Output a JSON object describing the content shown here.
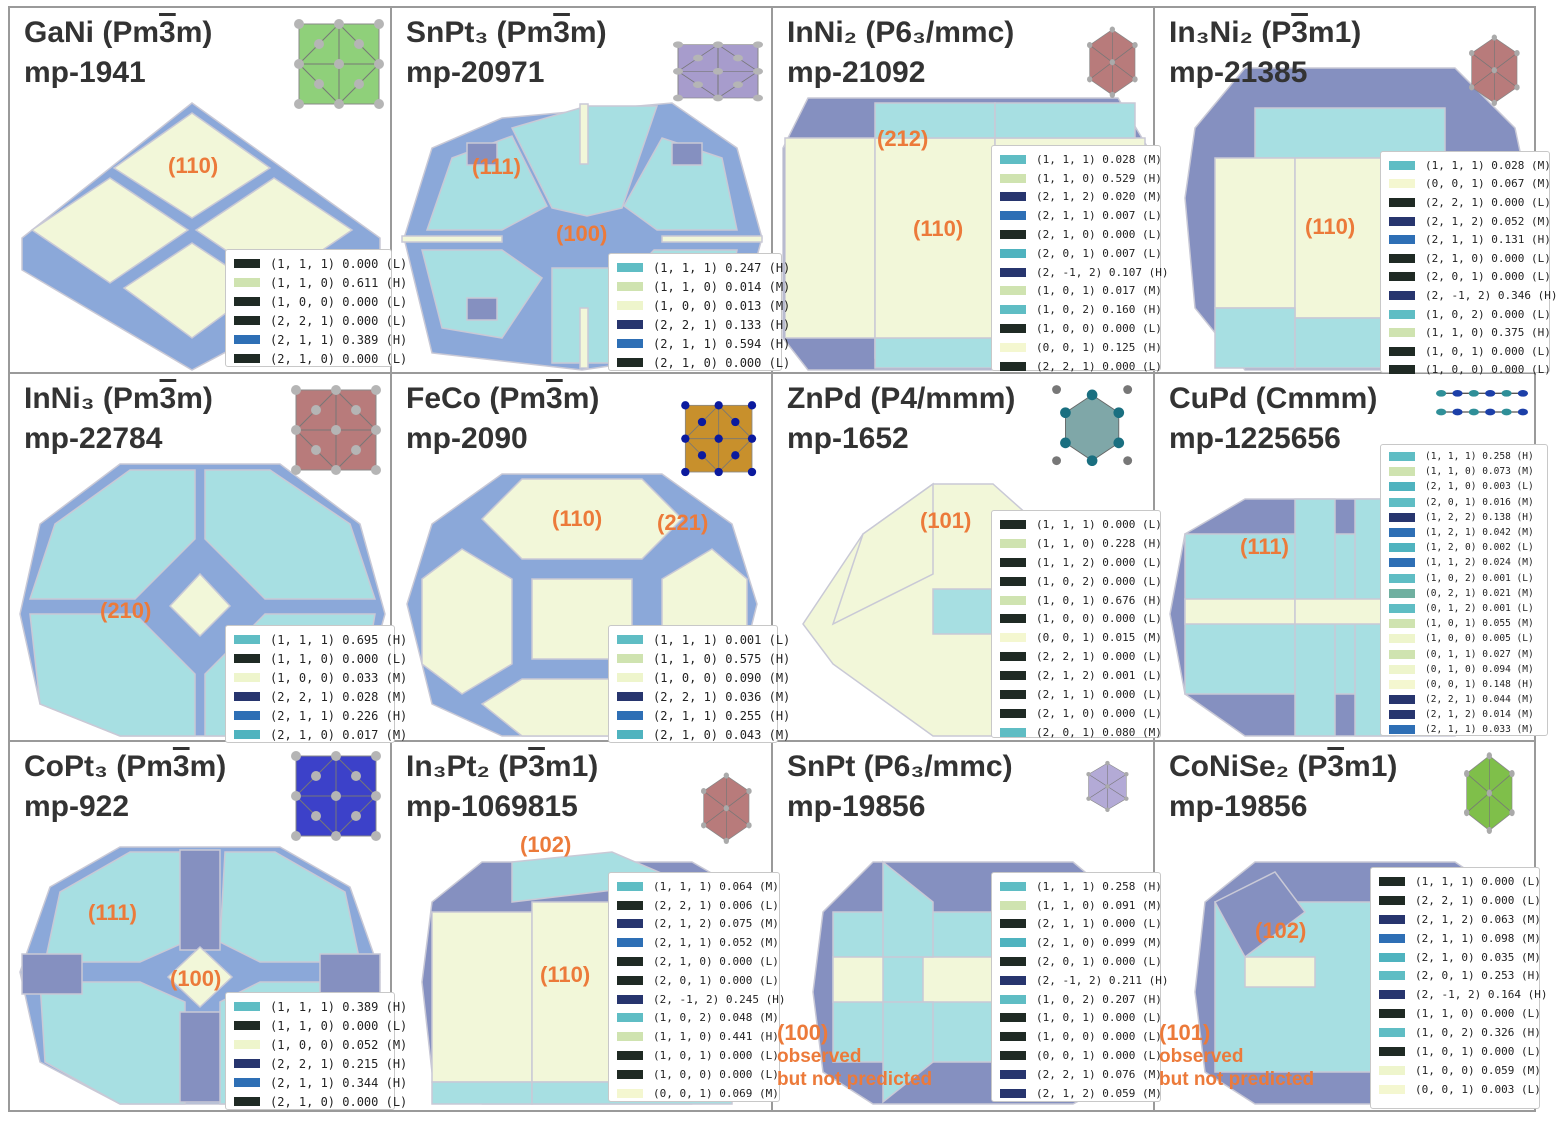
{
  "colors": {
    "H": "#2e6fb5",
    "M": "#5fbdc4",
    "L": "#1f2a24",
    "yellow": "#f2f7d9",
    "cyan": "#a7dfe2",
    "blue": "#8ba8d9",
    "slate": "#8590c0",
    "edge": "#c9c9d6",
    "label": "#ec7a3a"
  },
  "panels": [
    {
      "id": "gani",
      "formula": "GaNi (Pm3m)",
      "formula_parts": {
        "pre": "GaNi (Pm",
        "bar": "3",
        "post": "m)"
      },
      "mpid": "mp-1941",
      "thumb": "cubic-green",
      "labels": [
        {
          "text": "(110)"
        }
      ],
      "legend": [
        {
          "text": "(1, 1, 1) 0.000 (L)",
          "color": "#1f2a24"
        },
        {
          "text": "(1, 1, 0) 0.611 (H)",
          "color": "#cfe3b0"
        },
        {
          "text": "(1, 0, 0) 0.000 (L)",
          "color": "#1f2a24"
        },
        {
          "text": "(2, 2, 1) 0.000 (L)",
          "color": "#1f2a24"
        },
        {
          "text": "(2, 1, 1) 0.389 (H)",
          "color": "#2e6fb5"
        },
        {
          "text": "(2, 1, 0) 0.000 (L)",
          "color": "#1f2a24"
        }
      ]
    },
    {
      "id": "snpt3",
      "formula_parts": {
        "pre": "SnPt₃ (Pm",
        "bar": "3",
        "post": "m)"
      },
      "mpid": "mp-20971",
      "thumb": "cubic-violet",
      "labels": [
        {
          "text": "(111)"
        },
        {
          "text": "(100)"
        }
      ],
      "legend": [
        {
          "text": "(1, 1, 1) 0.247 (H)",
          "color": "#5fbdc4"
        },
        {
          "text": "(1, 1, 0) 0.014 (M)",
          "color": "#cfe3b0"
        },
        {
          "text": "(1, 0, 0) 0.013 (M)",
          "color": "#eef5cc"
        },
        {
          "text": "(2, 2, 1) 0.133 (H)",
          "color": "#27356e"
        },
        {
          "text": "(2, 1, 1) 0.594 (H)",
          "color": "#2e6fb5"
        },
        {
          "text": "(2, 1, 0) 0.000 (L)",
          "color": "#1f2a24"
        }
      ]
    },
    {
      "id": "inni2",
      "formula_parts": {
        "pre": "InNi₂ (P6₃/mmc)",
        "bar": "",
        "post": ""
      },
      "mpid": "mp-21092",
      "thumb": "hex-red",
      "labels": [
        {
          "text": "(212)"
        },
        {
          "text": "(110)"
        }
      ],
      "legend": [
        {
          "text": "(1, 1, 1) 0.028 (M)",
          "color": "#5fbdc4"
        },
        {
          "text": "(1, 1, 0) 0.529 (H)",
          "color": "#cfe3b0"
        },
        {
          "text": "(2, 1, 2) 0.020 (M)",
          "color": "#27356e"
        },
        {
          "text": "(2, 1, 1) 0.007 (L)",
          "color": "#2e6fb5"
        },
        {
          "text": "(2, 1, 0) 0.000 (L)",
          "color": "#1f2a24"
        },
        {
          "text": "(2, 0, 1) 0.007 (L)",
          "color": "#4fb3bf"
        },
        {
          "text": "(2, -1, 2) 0.107 (H)",
          "color": "#27356e"
        },
        {
          "text": "(1, 0, 1) 0.017 (M)",
          "color": "#cfe3b0"
        },
        {
          "text": "(1, 0, 2) 0.160 (H)",
          "color": "#5fbdc4"
        },
        {
          "text": "(1, 0, 0) 0.000 (L)",
          "color": "#1f2a24"
        },
        {
          "text": "(0, 0, 1) 0.125 (H)",
          "color": "#f4f7d0"
        },
        {
          "text": "(2, 2, 1) 0.000 (L)",
          "color": "#1f2a24"
        }
      ]
    },
    {
      "id": "in3ni2",
      "formula_parts": {
        "pre": "In₃Ni₂ (P",
        "bar": "3",
        "post": "m1)"
      },
      "mpid": "mp-21385",
      "thumb": "hex-red",
      "labels": [
        {
          "text": "(110)"
        }
      ],
      "legend": [
        {
          "text": "(1, 1, 1) 0.028 (M)",
          "color": "#5fbdc4"
        },
        {
          "text": "(0, 0, 1) 0.067 (M)",
          "color": "#f4f7d0"
        },
        {
          "text": "(2, 2, 1) 0.000 (L)",
          "color": "#1f2a24"
        },
        {
          "text": "(2, 1, 2) 0.052 (M)",
          "color": "#27356e"
        },
        {
          "text": "(2, 1, 1) 0.131 (H)",
          "color": "#2e6fb5"
        },
        {
          "text": "(2, 1, 0) 0.000 (L)",
          "color": "#1f2a24"
        },
        {
          "text": "(2, 0, 1) 0.000 (L)",
          "color": "#1f2a24"
        },
        {
          "text": "(2, -1, 2) 0.346 (H)",
          "color": "#27356e"
        },
        {
          "text": "(1, 0, 2) 0.000 (L)",
          "color": "#5fbdc4"
        },
        {
          "text": "(1, 1, 0) 0.375 (H)",
          "color": "#cfe3b0"
        },
        {
          "text": "(1, 0, 1) 0.000 (L)",
          "color": "#1f2a24"
        },
        {
          "text": "(1, 0, 0) 0.000 (L)",
          "color": "#1f2a24"
        }
      ]
    },
    {
      "id": "inni3",
      "formula_parts": {
        "pre": "InNi₃ (Pm",
        "bar": "3",
        "post": "m)"
      },
      "mpid": "mp-22784",
      "thumb": "cubic-red",
      "labels": [
        {
          "text": "(210)"
        }
      ],
      "legend": [
        {
          "text": "(1, 1, 1) 0.695 (H)",
          "color": "#5fbdc4"
        },
        {
          "text": "(1, 1, 0) 0.000 (L)",
          "color": "#1f2a24"
        },
        {
          "text": "(1, 0, 0) 0.033 (M)",
          "color": "#eef5cc"
        },
        {
          "text": "(2, 2, 1) 0.028 (M)",
          "color": "#27356e"
        },
        {
          "text": "(2, 1, 1) 0.226 (H)",
          "color": "#2e6fb5"
        },
        {
          "text": "(2, 1, 0) 0.017 (M)",
          "color": "#4fb3bf"
        }
      ]
    },
    {
      "id": "feco",
      "formula_parts": {
        "pre": "FeCo (Pm",
        "bar": "3",
        "post": "m)"
      },
      "mpid": "mp-2090",
      "thumb": "cubic-gold",
      "labels": [
        {
          "text": "(110)"
        },
        {
          "text": "(221)"
        }
      ],
      "legend": [
        {
          "text": "(1, 1, 1) 0.001 (L)",
          "color": "#5fbdc4"
        },
        {
          "text": "(1, 1, 0) 0.575 (H)",
          "color": "#cfe3b0"
        },
        {
          "text": "(1, 0, 0) 0.090 (M)",
          "color": "#eef5cc"
        },
        {
          "text": "(2, 2, 1) 0.036 (M)",
          "color": "#27356e"
        },
        {
          "text": "(2, 1, 1) 0.255 (H)",
          "color": "#2e6fb5"
        },
        {
          "text": "(2, 1, 0) 0.043 (M)",
          "color": "#4fb3bf"
        }
      ]
    },
    {
      "id": "znpd",
      "formula_parts": {
        "pre": "ZnPd (P4/mmm)",
        "bar": "",
        "post": ""
      },
      "mpid": "mp-1652",
      "thumb": "tetra-teal",
      "labels": [
        {
          "text": "(101)"
        }
      ],
      "legend": [
        {
          "text": "(1, 1, 1) 0.000 (L)",
          "color": "#1f2a24"
        },
        {
          "text": "(1, 1, 0) 0.228 (H)",
          "color": "#cfe3b0"
        },
        {
          "text": "(1, 1, 2) 0.000 (L)",
          "color": "#1f2a24"
        },
        {
          "text": "(1, 0, 2) 0.000 (L)",
          "color": "#1f2a24"
        },
        {
          "text": "(1, 0, 1) 0.676 (H)",
          "color": "#cfe3b0"
        },
        {
          "text": "(1, 0, 0) 0.000 (L)",
          "color": "#1f2a24"
        },
        {
          "text": "(0, 0, 1) 0.015 (M)",
          "color": "#f4f7d0"
        },
        {
          "text": "(2, 2, 1) 0.000 (L)",
          "color": "#1f2a24"
        },
        {
          "text": "(2, 1, 2) 0.001 (L)",
          "color": "#1f2a24"
        },
        {
          "text": "(2, 1, 1) 0.000 (L)",
          "color": "#1f2a24"
        },
        {
          "text": "(2, 1, 0) 0.000 (L)",
          "color": "#1f2a24"
        },
        {
          "text": "(2, 0, 1) 0.080 (M)",
          "color": "#5fbdc4"
        }
      ]
    },
    {
      "id": "cupd",
      "formula_parts": {
        "pre": "CuPd (Cmmm)",
        "bar": "",
        "post": ""
      },
      "mpid": "mp-1225656",
      "thumb": "chain-teal",
      "labels": [
        {
          "text": "(111)"
        }
      ],
      "legend": [
        {
          "text": "(1, 1, 1) 0.258 (H)",
          "color": "#5fbdc4"
        },
        {
          "text": "(1, 1, 0) 0.073 (M)",
          "color": "#cfe3b0"
        },
        {
          "text": "(2, 1, 0) 0.003 (L)",
          "color": "#4fb3bf"
        },
        {
          "text": "(2, 0, 1) 0.016 (M)",
          "color": "#5fbdc4"
        },
        {
          "text": "(1, 2, 2) 0.138 (H)",
          "color": "#27356e"
        },
        {
          "text": "(1, 2, 1) 0.042 (M)",
          "color": "#2e6fb5"
        },
        {
          "text": "(1, 2, 0) 0.002 (L)",
          "color": "#4fb3bf"
        },
        {
          "text": "(1, 1, 2) 0.024 (M)",
          "color": "#2e6fb5"
        },
        {
          "text": "(1, 0, 2) 0.001 (L)",
          "color": "#5fbdc4"
        },
        {
          "text": "(0, 2, 1) 0.021 (M)",
          "color": "#6fb0a0"
        },
        {
          "text": "(0, 1, 2) 0.001 (L)",
          "color": "#5fbdc4"
        },
        {
          "text": "(1, 0, 1) 0.055 (M)",
          "color": "#cfe3b0"
        },
        {
          "text": "(1, 0, 0) 0.005 (L)",
          "color": "#eef5cc"
        },
        {
          "text": "(0, 1, 1) 0.027 (M)",
          "color": "#cfe3b0"
        },
        {
          "text": "(0, 1, 0) 0.094 (M)",
          "color": "#eef5cc"
        },
        {
          "text": "(0, 0, 1) 0.148 (H)",
          "color": "#f4f7d0"
        },
        {
          "text": "(2, 2, 1) 0.044 (M)",
          "color": "#27356e"
        },
        {
          "text": "(2, 1, 2) 0.014 (M)",
          "color": "#27356e"
        },
        {
          "text": "(2, 1, 1) 0.033 (M)",
          "color": "#2e6fb5"
        }
      ]
    },
    {
      "id": "copt3",
      "formula_parts": {
        "pre": "CoPt₃ (Pm",
        "bar": "3",
        "post": "m)"
      },
      "mpid": "mp-922",
      "thumb": "cubic-blue",
      "labels": [
        {
          "text": "(111)"
        },
        {
          "text": "(100)"
        }
      ],
      "legend": [
        {
          "text": "(1, 1, 1) 0.389 (H)",
          "color": "#5fbdc4"
        },
        {
          "text": "(1, 1, 0) 0.000 (L)",
          "color": "#1f2a24"
        },
        {
          "text": "(1, 0, 0) 0.052 (M)",
          "color": "#eef5cc"
        },
        {
          "text": "(2, 2, 1) 0.215 (H)",
          "color": "#27356e"
        },
        {
          "text": "(2, 1, 1) 0.344 (H)",
          "color": "#2e6fb5"
        },
        {
          "text": "(2, 1, 0) 0.000 (L)",
          "color": "#1f2a24"
        }
      ]
    },
    {
      "id": "in3pt2",
      "formula_parts": {
        "pre": "In₃Pt₂ (P",
        "bar": "3",
        "post": "m1)"
      },
      "mpid": "mp-1069815",
      "thumb": "hex-red",
      "labels": [
        {
          "text": "(102)"
        },
        {
          "text": "(110)"
        }
      ],
      "legend": [
        {
          "text": "(1, 1, 1) 0.064 (M)",
          "color": "#5fbdc4"
        },
        {
          "text": "(2, 2, 1) 0.006 (L)",
          "color": "#1f2a24"
        },
        {
          "text": "(2, 1, 2) 0.075 (M)",
          "color": "#27356e"
        },
        {
          "text": "(2, 1, 1) 0.052 (M)",
          "color": "#2e6fb5"
        },
        {
          "text": "(2, 1, 0) 0.000 (L)",
          "color": "#1f2a24"
        },
        {
          "text": "(2, 0, 1) 0.000 (L)",
          "color": "#1f2a24"
        },
        {
          "text": "(2, -1, 2) 0.245 (H)",
          "color": "#27356e"
        },
        {
          "text": "(1, 0, 2) 0.048 (M)",
          "color": "#5fbdc4"
        },
        {
          "text": "(1, 1, 0) 0.441 (H)",
          "color": "#cfe3b0"
        },
        {
          "text": "(1, 0, 1) 0.000 (L)",
          "color": "#1f2a24"
        },
        {
          "text": "(1, 0, 0) 0.000 (L)",
          "color": "#1f2a24"
        },
        {
          "text": "(0, 0, 1) 0.069 (M)",
          "color": "#f4f7d0"
        }
      ]
    },
    {
      "id": "snpt",
      "formula_parts": {
        "pre": "SnPt (P6₃/mmc)",
        "bar": "",
        "post": ""
      },
      "mpid": "mp-19856",
      "thumb": "hex-violet",
      "labels": [],
      "note": {
        "facet": "(100)",
        "line1": "observed",
        "line2": "but not predicted"
      },
      "legend": [
        {
          "text": "(1, 1, 1) 0.258 (H)",
          "color": "#5fbdc4"
        },
        {
          "text": "(1, 1, 0) 0.091 (M)",
          "color": "#cfe3b0"
        },
        {
          "text": "(2, 1, 1) 0.000 (L)",
          "color": "#1f2a24"
        },
        {
          "text": "(2, 1, 0) 0.099 (M)",
          "color": "#4fb3bf"
        },
        {
          "text": "(2, 0, 1) 0.000 (L)",
          "color": "#1f2a24"
        },
        {
          "text": "(2, -1, 2) 0.211 (H)",
          "color": "#27356e"
        },
        {
          "text": "(1, 0, 2) 0.207 (H)",
          "color": "#5fbdc4"
        },
        {
          "text": "(1, 0, 1) 0.000 (L)",
          "color": "#1f2a24"
        },
        {
          "text": "(1, 0, 0) 0.000 (L)",
          "color": "#1f2a24"
        },
        {
          "text": "(0, 0, 1) 0.000 (L)",
          "color": "#1f2a24"
        },
        {
          "text": "(2, 2, 1) 0.076 (M)",
          "color": "#27356e"
        },
        {
          "text": "(2, 1, 2) 0.059 (M)",
          "color": "#27356e"
        }
      ]
    },
    {
      "id": "conise2",
      "formula_parts": {
        "pre": "CoNiSe₂ (P",
        "bar": "3",
        "post": "m1)"
      },
      "mpid": "mp-19856",
      "thumb": "hex-green",
      "labels": [
        {
          "text": "(102)"
        }
      ],
      "note": {
        "facet": "(101)",
        "line1": "observed",
        "line2": "but not predicted"
      },
      "legend": [
        {
          "text": "(1, 1, 1) 0.000 (L)",
          "color": "#1f2a24"
        },
        {
          "text": "(2, 2, 1) 0.000 (L)",
          "color": "#1f2a24"
        },
        {
          "text": "(2, 1, 2) 0.063 (M)",
          "color": "#27356e"
        },
        {
          "text": "(2, 1, 1) 0.098 (M)",
          "color": "#2e6fb5"
        },
        {
          "text": "(2, 1, 0) 0.035 (M)",
          "color": "#4fb3bf"
        },
        {
          "text": "(2, 0, 1) 0.253 (H)",
          "color": "#5fbdc4"
        },
        {
          "text": "(2, -1, 2) 0.164 (H)",
          "color": "#27356e"
        },
        {
          "text": "(1, 1, 0) 0.000 (L)",
          "color": "#1f2a24"
        },
        {
          "text": "(1, 0, 2) 0.326 (H)",
          "color": "#5fbdc4"
        },
        {
          "text": "(1, 0, 1) 0.000 (L)",
          "color": "#1f2a24"
        },
        {
          "text": "(1, 0, 0) 0.059 (M)",
          "color": "#eef5cc"
        },
        {
          "text": "(0, 0, 1) 0.003 (L)",
          "color": "#f4f7d0"
        }
      ]
    }
  ]
}
